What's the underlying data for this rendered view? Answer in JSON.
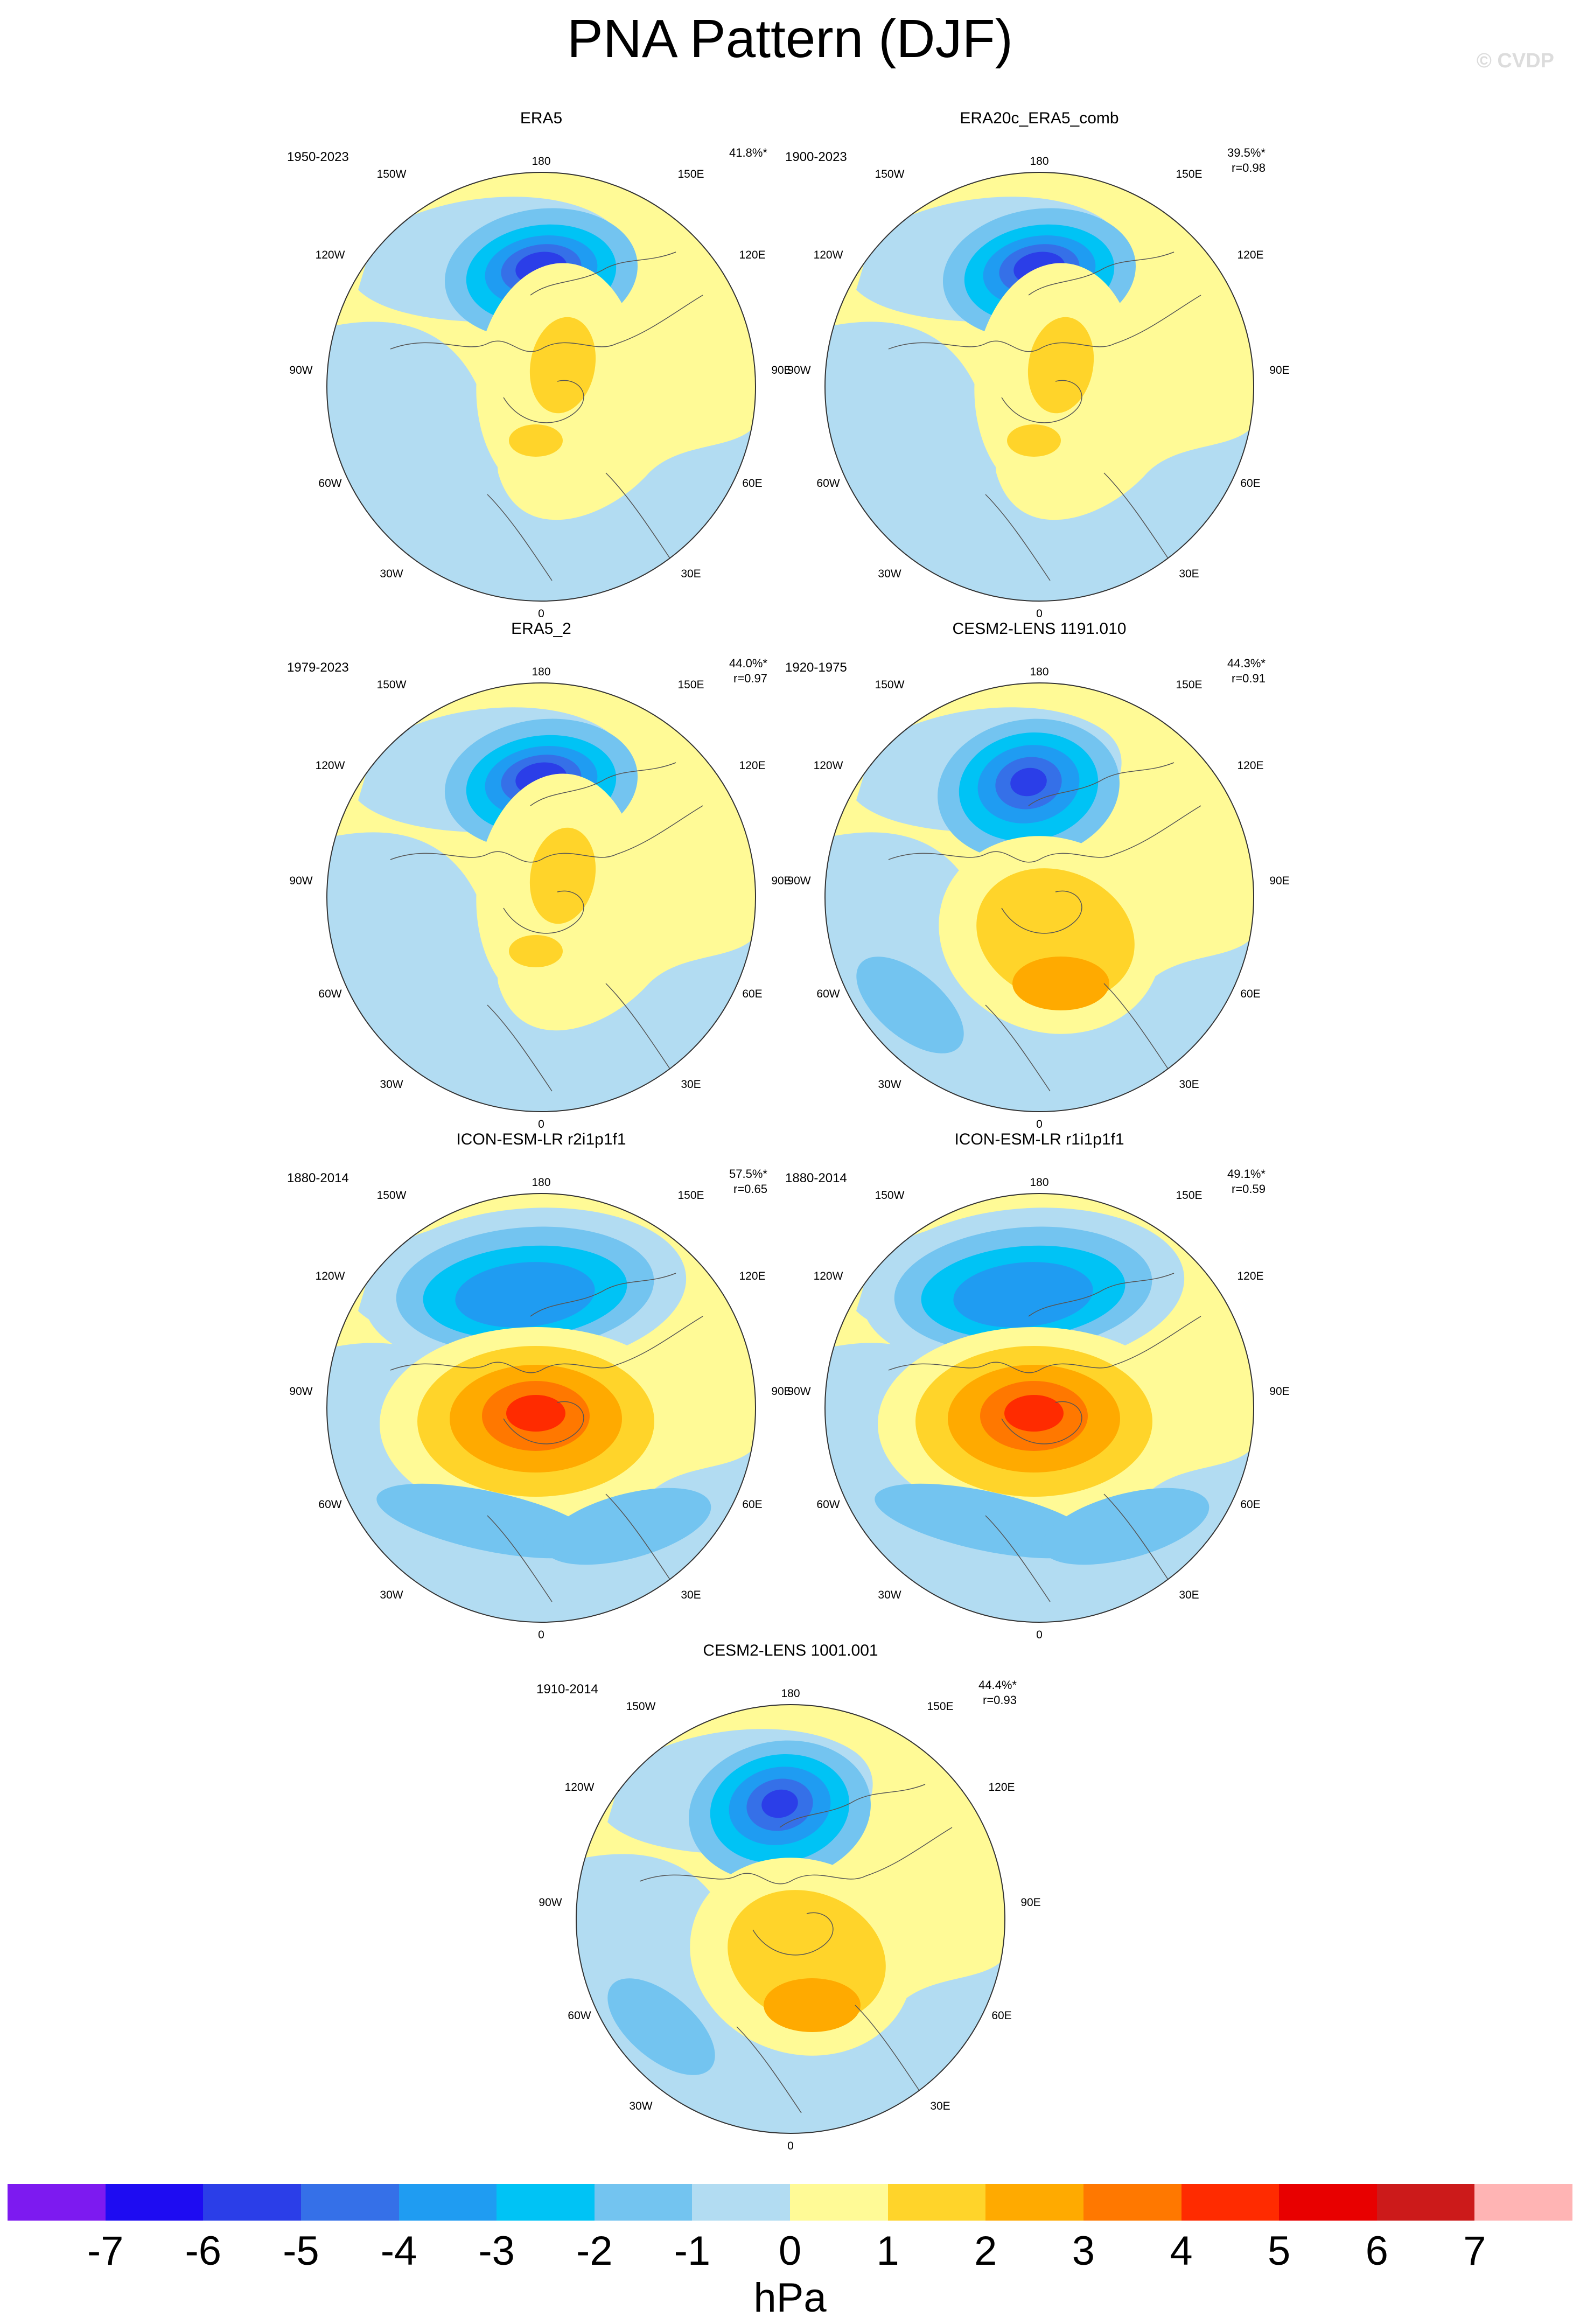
{
  "title": "PNA Pattern (DJF)",
  "watermark": "© CVDP",
  "lon_labels": {
    "top": "180",
    "top_left": "150W",
    "top_right": "150E",
    "upper_left": "120W",
    "upper_right": "120E",
    "left": "90W",
    "right": "90E",
    "lower_left": "60W",
    "lower_right": "60E",
    "bottom_left": "30W",
    "bottom_right": "30E",
    "bottom": "0"
  },
  "panels": [
    {
      "name": "ERA5",
      "period": "1950-2023",
      "pct": "41.8%*",
      "r": ""
    },
    {
      "name": "ERA20c_ERA5_comb",
      "period": "1900-2023",
      "pct": "39.5%*",
      "r": "r=0.98"
    },
    {
      "name": "ERA5_2",
      "period": "1979-2023",
      "pct": "44.0%*",
      "r": "r=0.97"
    },
    {
      "name": "CESM2-LENS 1191.010",
      "period": "1920-1975",
      "pct": "44.3%*",
      "r": "r=0.91"
    },
    {
      "name": "ICON-ESM-LR r2i1p1f1",
      "period": "1880-2014",
      "pct": "57.5%*",
      "r": "r=0.65"
    },
    {
      "name": "ICON-ESM-LR r1i1p1f1",
      "period": "1880-2014",
      "pct": "49.1%*",
      "r": "r=0.59"
    },
    {
      "name": "CESM2-LENS 1001.001",
      "period": "1910-2014",
      "pct": "44.4%*",
      "r": "r=0.93"
    }
  ],
  "colorbar": {
    "colors": [
      "#7d1af0",
      "#1e0cf2",
      "#2b3ee8",
      "#3570e8",
      "#1f9cf2",
      "#00c3f5",
      "#73c4f0",
      "#b2dcf2",
      "#fffa96",
      "#ffd42a",
      "#ffaa00",
      "#ff7800",
      "#ff2b00",
      "#e80000",
      "#cc1a1a",
      "#ffb4b4"
    ],
    "ticks": [
      "-7",
      "-6",
      "-5",
      "-4",
      "-3",
      "-2",
      "-1",
      "0",
      "1",
      "2",
      "3",
      "4",
      "5",
      "6",
      "7"
    ],
    "unit": "hPa"
  }
}
